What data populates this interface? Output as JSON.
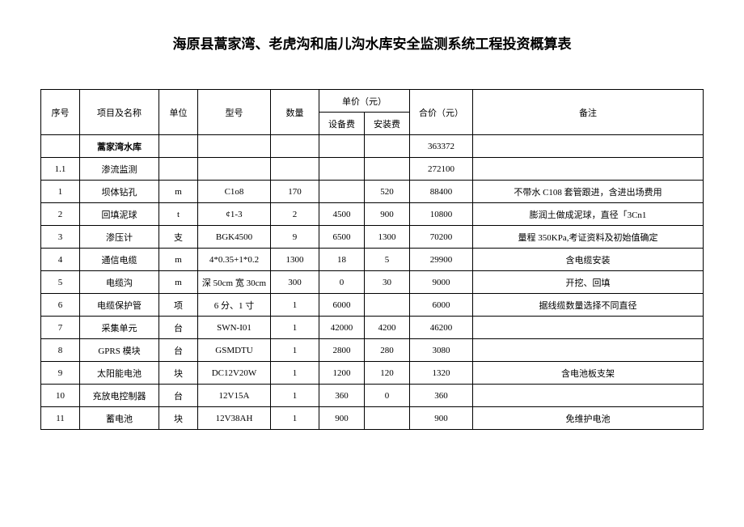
{
  "title": "海原县蒿家湾、老虎沟和庙儿沟水库安全监测系统工程投资概算表",
  "headers": {
    "seq": "序号",
    "name": "项目及名称",
    "unit": "单位",
    "model": "型号",
    "qty": "数量",
    "unitprice": "单价（元）",
    "equip": "设备费",
    "install": "安装费",
    "total": "合价（元）",
    "remark": "备注"
  },
  "rows": [
    {
      "seq": "",
      "name": "蒿家湾水库",
      "unit": "",
      "model": "",
      "qty": "",
      "equip": "",
      "install": "",
      "total": "363372",
      "remark": "",
      "bold": true
    },
    {
      "seq": "1.1",
      "name": "渗流监测",
      "unit": "",
      "model": "",
      "qty": "",
      "equip": "",
      "install": "",
      "total": "272100",
      "remark": ""
    },
    {
      "seq": "1",
      "name": "坝体钻孔",
      "unit": "m",
      "model": "C1o8",
      "qty": "170",
      "equip": "",
      "install": "520",
      "total": "88400",
      "remark": "不带水 C108 套管跟进，含进出场费用"
    },
    {
      "seq": "2",
      "name": "回填泥球",
      "unit": "t",
      "model": "¢1-3",
      "qty": "2",
      "equip": "4500",
      "install": "900",
      "total": "10800",
      "remark": "膨润土做成泥球，直径「3Cn1"
    },
    {
      "seq": "3",
      "name": "渗压计",
      "unit": "支",
      "model": "BGK4500",
      "qty": "9",
      "equip": "6500",
      "install": "1300",
      "total": "70200",
      "remark": "量程 350KPa,考证资料及初始值确定"
    },
    {
      "seq": "4",
      "name": "通信电缆",
      "unit": "m",
      "model": "4*0.35+1*0.2",
      "qty": "1300",
      "equip": "18",
      "install": "5",
      "total": "29900",
      "remark": "含电缆安装"
    },
    {
      "seq": "5",
      "name": "电缆沟",
      "unit": "m",
      "model": "深 50cm 宽 30cm",
      "qty": "300",
      "equip": "0",
      "install": "30",
      "total": "9000",
      "remark": "开挖、回填"
    },
    {
      "seq": "6",
      "name": "电缆保护管",
      "unit": "项",
      "model": "6 分、1 寸",
      "qty": "1",
      "equip": "6000",
      "install": "",
      "total": "6000",
      "remark": "据线缆数量选择不同直径"
    },
    {
      "seq": "7",
      "name": "采集单元",
      "unit": "台",
      "model": "SWN-I01",
      "qty": "1",
      "equip": "42000",
      "install": "4200",
      "total": "46200",
      "remark": ""
    },
    {
      "seq": "8",
      "name": "GPRS 模块",
      "unit": "台",
      "model": "GSMDTU",
      "qty": "1",
      "equip": "2800",
      "install": "280",
      "total": "3080",
      "remark": ""
    },
    {
      "seq": "9",
      "name": "太阳能电池",
      "unit": "块",
      "model": "DC12V20W",
      "qty": "1",
      "equip": "1200",
      "install": "120",
      "total": "1320",
      "remark": "含电池板支架"
    },
    {
      "seq": "10",
      "name": "充放电控制器",
      "unit": "台",
      "model": "12V15A",
      "qty": "1",
      "equip": "360",
      "install": "0",
      "total": "360",
      "remark": ""
    },
    {
      "seq": "11",
      "name": "蓄电池",
      "unit": "块",
      "model": "12V38AH",
      "qty": "1",
      "equip": "900",
      "install": "",
      "total": "900",
      "remark": "免维护电池"
    }
  ]
}
